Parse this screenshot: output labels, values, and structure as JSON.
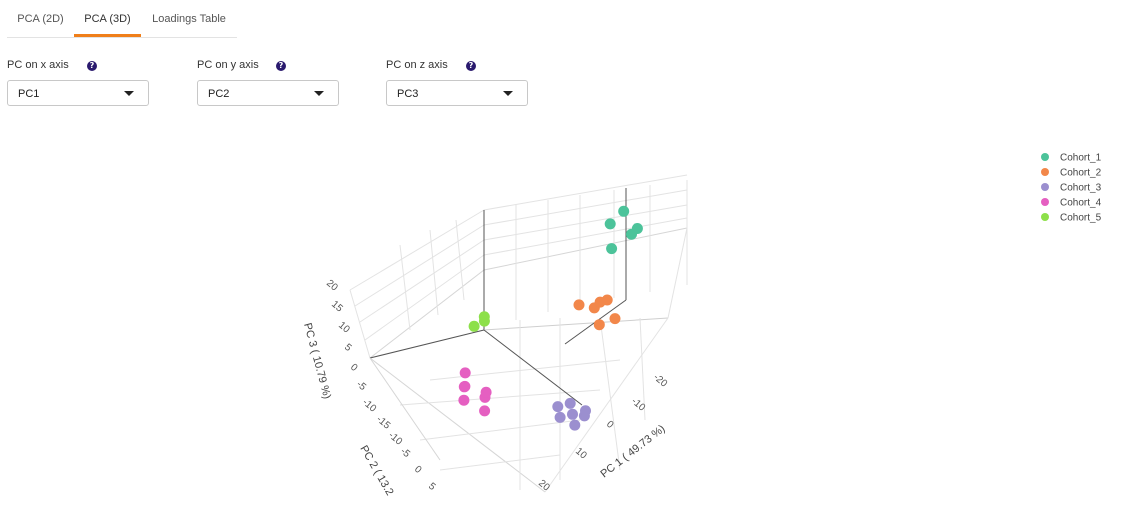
{
  "tabs": [
    {
      "label": "PCA (2D)",
      "active": false
    },
    {
      "label": "PCA (3D)",
      "active": true
    },
    {
      "label": "Loadings Table",
      "active": false
    }
  ],
  "controls": [
    {
      "label": "PC on x axis",
      "value": "PC1",
      "help": "?"
    },
    {
      "label": "PC on y axis",
      "value": "PC2",
      "help": "?"
    },
    {
      "label": "PC on z axis",
      "value": "PC3",
      "help": "?"
    }
  ],
  "colors": {
    "accent": "#f07f1a",
    "Cohort_1": "#4cc39a",
    "Cohort_2": "#f2874a",
    "Cohort_3": "#9b8fcf",
    "Cohort_4": "#e55fc1",
    "Cohort_5": "#8de04a"
  },
  "chart_data": {
    "type": "scatter",
    "title": "",
    "xlabel": "PC 1 ( 49.73 %)",
    "ylabel": "PC 2 ( 13.2",
    "zlabel": "PC 3 ( 10.79 %)",
    "x_ticks": [
      "-20",
      "-10",
      "0",
      "10",
      "20"
    ],
    "y_ticks": [
      "-15",
      "-10",
      "-5",
      "0",
      "5"
    ],
    "z_ticks": [
      "20",
      "15",
      "10",
      "5",
      "0",
      "-5",
      "-10"
    ],
    "legend_position": "top-right",
    "series": [
      {
        "name": "Cohort_1",
        "points": [
          [
            -19,
            -5,
            17
          ],
          [
            -17,
            -6,
            15
          ],
          [
            -14,
            -4,
            13
          ],
          [
            -20,
            -3,
            14
          ],
          [
            -16,
            -2,
            16
          ]
        ]
      },
      {
        "name": "Cohort_2",
        "points": [
          [
            -8,
            -3,
            5
          ],
          [
            -6,
            -1,
            4
          ],
          [
            -10,
            -2,
            6
          ],
          [
            -12,
            -4,
            3
          ],
          [
            -9,
            0,
            4
          ],
          [
            -7,
            -5,
            5
          ]
        ]
      },
      {
        "name": "Cohort_3",
        "points": [
          [
            -1,
            -2,
            -10
          ],
          [
            0,
            -1,
            -11
          ],
          [
            1,
            -3,
            -10
          ],
          [
            -2,
            0,
            -12
          ],
          [
            2,
            -2,
            -11
          ],
          [
            0,
            1,
            -9
          ],
          [
            1,
            0,
            -12
          ]
        ]
      },
      {
        "name": "Cohort_4",
        "points": [
          [
            8,
            -15,
            -6
          ],
          [
            10,
            -14,
            -7
          ],
          [
            12,
            -13,
            -5
          ],
          [
            14,
            -12,
            -6
          ],
          [
            9,
            -11,
            -8
          ],
          [
            11,
            -10,
            -5
          ],
          [
            13,
            -9,
            -7
          ]
        ]
      },
      {
        "name": "Cohort_5",
        "points": [
          [
            10,
            -12,
            9
          ],
          [
            12,
            -11,
            10
          ],
          [
            11,
            -13,
            7
          ]
        ]
      }
    ]
  }
}
